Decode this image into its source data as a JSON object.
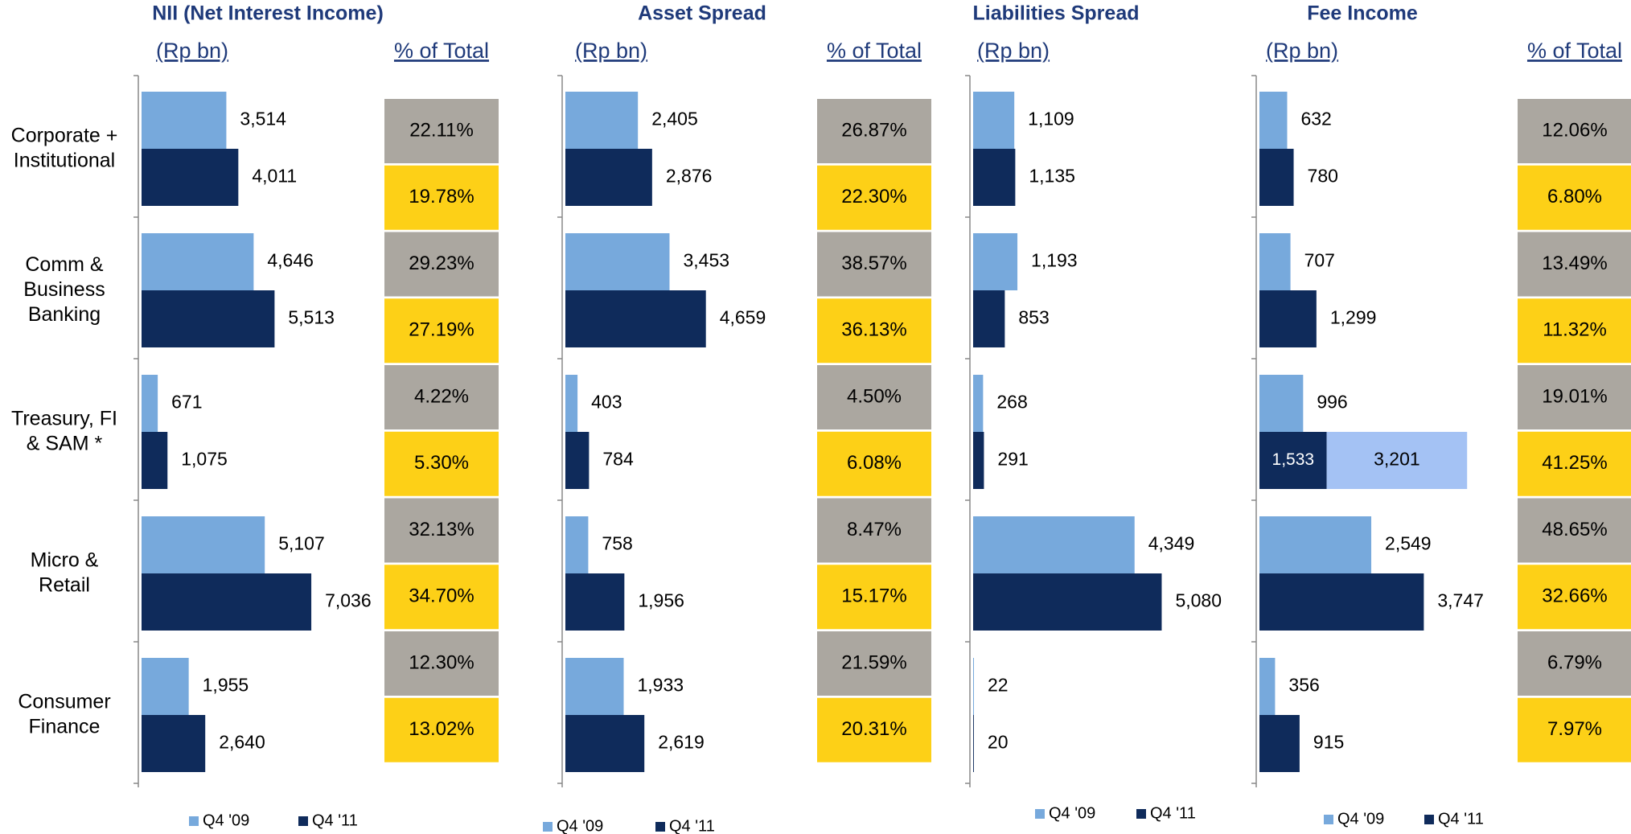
{
  "chart_data": [
    {
      "type": "bar",
      "orientation": "horizontal",
      "title": "NII (Net Interest Income)",
      "unit_label": "(Rp bn)",
      "share_header": "% of Total",
      "categories": [
        "Corporate +\nInstitutional",
        "Comm &\nBusiness\nBanking",
        "Treasury, FI\n& SAM *",
        "Micro &\nRetail",
        "Consumer\nFinance"
      ],
      "xlim": [
        0,
        10000
      ],
      "series": [
        {
          "name": "Q4 '09",
          "color": "#77a9dc",
          "values": [
            3514,
            4646,
            671,
            5107,
            1955
          ],
          "value_labels": [
            "3,514",
            "4,646",
            "671",
            "5,107",
            "1,955"
          ],
          "share_color": "#aba7a0",
          "shares": [
            22.11,
            29.23,
            4.22,
            32.13,
            12.3
          ],
          "share_labels": [
            "22.11%",
            "29.23%",
            "4.22%",
            "32.13%",
            "12.30%"
          ]
        },
        {
          "name": "Q4 '11",
          "color": "#0f2b5b",
          "values": [
            4011,
            5513,
            1075,
            7036,
            2640
          ],
          "value_labels": [
            "4,011",
            "5,513",
            "1,075",
            "7,036",
            "2,640"
          ],
          "share_color": "#fdd017",
          "shares": [
            19.78,
            27.19,
            5.3,
            34.7,
            13.02
          ],
          "share_labels": [
            "19.78%",
            "27.19%",
            "5.30%",
            "34.70%",
            "13.02%"
          ]
        }
      ]
    },
    {
      "type": "bar",
      "orientation": "horizontal",
      "title": "Asset Spread",
      "unit_label": "(Rp bn)",
      "share_header": "% of Total",
      "xlim": [
        0,
        8000
      ],
      "series": [
        {
          "name": "Q4 '09",
          "color": "#77a9dc",
          "values": [
            2405,
            3453,
            403,
            758,
            1933
          ],
          "value_labels": [
            "2,405",
            "3,453",
            "403",
            "758",
            "1,933"
          ],
          "share_color": "#aba7a0",
          "shares": [
            26.87,
            38.57,
            4.5,
            8.47,
            21.59
          ],
          "share_labels": [
            "26.87%",
            "38.57%",
            "4.50%",
            "8.47%",
            "21.59%"
          ]
        },
        {
          "name": "Q4 '11",
          "color": "#0f2b5b",
          "values": [
            2876,
            4659,
            784,
            1956,
            2619
          ],
          "value_labels": [
            "2,876",
            "4,659",
            "784",
            "1,956",
            "2,619"
          ],
          "share_color": "#fdd017",
          "shares": [
            22.3,
            36.13,
            6.08,
            15.17,
            20.31
          ],
          "share_labels": [
            "22.30%",
            "36.13%",
            "6.08%",
            "15.17%",
            "20.31%"
          ]
        }
      ]
    },
    {
      "type": "bar",
      "orientation": "horizontal",
      "title": "Liabilities  Spread",
      "unit_label": "(Rp bn)",
      "xlim": [
        0,
        6500
      ],
      "series": [
        {
          "name": "Q4 '09",
          "color": "#77a9dc",
          "values": [
            1109,
            1193,
            268,
            4349,
            22
          ],
          "value_labels": [
            "1,109",
            "1,193",
            "268",
            "4,349",
            "22"
          ]
        },
        {
          "name": "Q4 '11",
          "color": "#0f2b5b",
          "values": [
            1135,
            853,
            291,
            5080,
            20
          ],
          "value_labels": [
            "1,135",
            "853",
            "291",
            "5,080",
            "20"
          ]
        }
      ]
    },
    {
      "type": "bar",
      "orientation": "horizontal",
      "title": "Fee Income",
      "unit_label": "(Rp bn)",
      "share_header": "% of Total",
      "xlim": [
        0,
        5500
      ],
      "series": [
        {
          "name": "Q4 '09",
          "color": "#77a9dc",
          "values": [
            632,
            707,
            996,
            2549,
            356
          ],
          "value_labels": [
            "632",
            "707",
            "996",
            "2,549",
            "356"
          ],
          "share_color": "#aba7a0",
          "shares": [
            12.06,
            13.49,
            19.01,
            48.65,
            6.79
          ],
          "share_labels": [
            "12.06%",
            "13.49%",
            "19.01%",
            "48.65%",
            "6.79%"
          ]
        },
        {
          "name": "Q4 '11",
          "color": "#0f2b5b",
          "values": [
            780,
            1299,
            1533,
            3747,
            915
          ],
          "value_labels": [
            "780",
            "1,299",
            "1,533",
            "3,747",
            "915"
          ],
          "share_color": "#fdd017",
          "shares": [
            6.8,
            11.32,
            41.25,
            32.66,
            7.97
          ],
          "share_labels": [
            "6.80%",
            "11.32%",
            "41.25%",
            "32.66%",
            "7.97%"
          ]
        },
        {
          "color": "#a4c2f4",
          "stack_on": 1,
          "values": [
            null,
            null,
            3201,
            null,
            null
          ],
          "value_labels": [
            null,
            null,
            "3,201",
            null,
            null
          ]
        }
      ]
    }
  ]
}
